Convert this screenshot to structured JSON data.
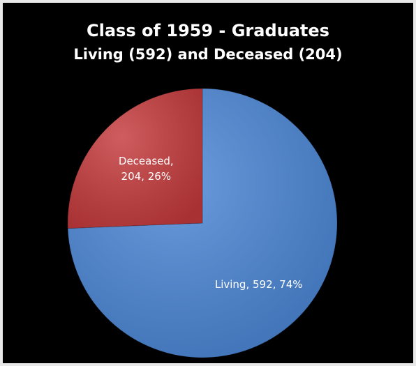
{
  "chart_data": {
    "type": "pie",
    "title": "Class of 1959 - Graduates",
    "subtitle": "Living (592) and Deceased (204)",
    "categories": [
      "Living",
      "Deceased"
    ],
    "values": [
      592,
      204
    ],
    "value_labels": [
      "Living, 592, 74%",
      "Deceased, 204, 26%"
    ],
    "colors": [
      "#4a86d6",
      "#c53a3c"
    ]
  }
}
